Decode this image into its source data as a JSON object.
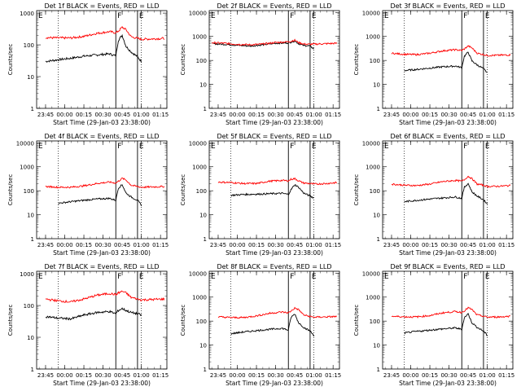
{
  "figure": {
    "shared_xlabel": "Start Time (29-Jan-03 23:38:00)",
    "ylabel": "Counts/sec",
    "x_tick_labels": [
      "23:45",
      "00:00",
      "00:15",
      "00:30",
      "00:45",
      "01:00",
      "01:15"
    ],
    "y_tick_labels_small": [
      "1",
      "10",
      "100",
      "1000"
    ],
    "y_tick_labels_large": [
      "1",
      "10",
      "100",
      "1000",
      "10000"
    ],
    "colors": {
      "events": "#000000",
      "lld": "#ff0000"
    },
    "markers": {
      "vertical_labels": [
        "E",
        "F",
        "E"
      ]
    }
  },
  "chart_data": [
    {
      "type": "line",
      "title": "Det 1f BLACK = Events, RED = LLD",
      "xlabel": "Start Time (29-Jan-03 23:38:00)",
      "ylabel": "Counts/sec",
      "ylog": true,
      "ylim": [
        1,
        1200
      ],
      "xlim": [
        "23:38",
        "01:20"
      ],
      "series": [
        {
          "name": "Events",
          "color": "#000000",
          "x": [
            "23:45",
            "23:55",
            "00:05",
            "00:15",
            "00:25",
            "00:35",
            "00:40",
            "00:42",
            "00:45",
            "00:48",
            "00:52",
            "00:57",
            "01:00"
          ],
          "values": [
            30,
            34,
            38,
            44,
            48,
            52,
            45,
            140,
            200,
            90,
            60,
            42,
            30
          ]
        },
        {
          "name": "LLD",
          "color": "#ff0000",
          "x": [
            "23:45",
            "23:55",
            "00:05",
            "00:15",
            "00:25",
            "00:35",
            "00:40",
            "00:42",
            "00:45",
            "00:48",
            "00:52",
            "00:57",
            "01:00",
            "01:10",
            "01:18"
          ],
          "values": [
            170,
            165,
            165,
            185,
            230,
            260,
            240,
            270,
            360,
            300,
            180,
            160,
            150,
            155,
            160
          ]
        }
      ],
      "vertical_lines": [
        {
          "x": "23:55",
          "style": "dotted"
        },
        {
          "x": "00:40",
          "style": "solid"
        },
        {
          "x": "00:57",
          "style": "solid"
        },
        {
          "x": "01:00",
          "style": "dotted"
        }
      ]
    },
    {
      "type": "line",
      "title": "Det 2f BLACK = Events, RED = LLD",
      "xlabel": "Start Time (29-Jan-03 23:38:00)",
      "ylabel": "Counts/sec",
      "ylog": true,
      "ylim": [
        1,
        12000
      ],
      "xlim": [
        "23:38",
        "01:20"
      ],
      "series": [
        {
          "name": "Events",
          "color": "#000000",
          "x": [
            "23:40",
            "23:50",
            "00:00",
            "00:10",
            "00:20",
            "00:30",
            "00:40",
            "00:45",
            "00:48",
            "00:52",
            "00:57",
            "01:00"
          ],
          "values": [
            500,
            470,
            430,
            400,
            450,
            520,
            540,
            650,
            500,
            420,
            400,
            300
          ]
        },
        {
          "name": "LLD",
          "color": "#ff0000",
          "x": [
            "23:40",
            "23:50",
            "00:00",
            "00:10",
            "00:20",
            "00:30",
            "00:40",
            "00:45",
            "00:48",
            "00:52",
            "00:57",
            "01:00",
            "01:10",
            "01:18"
          ],
          "values": [
            550,
            520,
            470,
            450,
            480,
            560,
            600,
            700,
            560,
            480,
            470,
            480,
            500,
            520
          ]
        }
      ],
      "vertical_lines": [
        {
          "x": "23:55",
          "style": "dotted"
        },
        {
          "x": "00:40",
          "style": "solid"
        },
        {
          "x": "00:57",
          "style": "solid"
        },
        {
          "x": "01:00",
          "style": "dotted"
        }
      ]
    },
    {
      "type": "line",
      "title": "Det 3f BLACK = Events, RED = LLD",
      "xlabel": "Start Time (29-Jan-03 23:38:00)",
      "ylabel": "Counts/sec",
      "ylog": true,
      "ylim": [
        1,
        12000
      ],
      "xlim": [
        "23:38",
        "01:20"
      ],
      "series": [
        {
          "name": "Events",
          "color": "#000000",
          "x": [
            "23:55",
            "00:05",
            "00:15",
            "00:25",
            "00:35",
            "00:40",
            "00:42",
            "00:45",
            "00:48",
            "00:52",
            "00:57",
            "01:00"
          ],
          "values": [
            38,
            42,
            48,
            54,
            58,
            50,
            150,
            220,
            95,
            65,
            45,
            30
          ]
        },
        {
          "name": "LLD",
          "color": "#ff0000",
          "x": [
            "23:45",
            "23:55",
            "00:05",
            "00:15",
            "00:25",
            "00:35",
            "00:40",
            "00:42",
            "00:45",
            "00:48",
            "00:52",
            "00:57",
            "01:00",
            "01:10",
            "01:18"
          ],
          "values": [
            200,
            180,
            175,
            200,
            250,
            280,
            260,
            300,
            400,
            330,
            200,
            175,
            160,
            165,
            170
          ]
        }
      ],
      "vertical_lines": [
        {
          "x": "23:55",
          "style": "dotted"
        },
        {
          "x": "00:40",
          "style": "solid"
        },
        {
          "x": "00:57",
          "style": "solid"
        },
        {
          "x": "01:00",
          "style": "dotted"
        }
      ]
    },
    {
      "type": "line",
      "title": "Det 4f BLACK = Events, RED = LLD",
      "xlabel": "Start Time (29-Jan-03 23:38:00)",
      "ylabel": "Counts/sec",
      "ylog": true,
      "ylim": [
        1,
        12000
      ],
      "xlim": [
        "23:38",
        "01:20"
      ],
      "series": [
        {
          "name": "Events",
          "color": "#000000",
          "x": [
            "23:55",
            "00:05",
            "00:15",
            "00:25",
            "00:35",
            "00:40",
            "00:42",
            "00:45",
            "00:48",
            "00:52",
            "00:57",
            "01:00"
          ],
          "values": [
            30,
            35,
            40,
            45,
            48,
            40,
            130,
            180,
            80,
            55,
            40,
            25
          ]
        },
        {
          "name": "LLD",
          "color": "#ff0000",
          "x": [
            "23:45",
            "23:55",
            "00:05",
            "00:15",
            "00:25",
            "00:35",
            "00:40",
            "00:42",
            "00:45",
            "00:48",
            "00:52",
            "00:57",
            "01:00",
            "01:10",
            "01:18"
          ],
          "values": [
            150,
            140,
            140,
            160,
            200,
            230,
            210,
            250,
            330,
            280,
            170,
            150,
            140,
            145,
            150
          ]
        }
      ],
      "vertical_lines": [
        {
          "x": "23:55",
          "style": "dotted"
        },
        {
          "x": "00:40",
          "style": "solid"
        },
        {
          "x": "00:57",
          "style": "solid"
        },
        {
          "x": "01:00",
          "style": "dotted"
        }
      ]
    },
    {
      "type": "line",
      "title": "Det 5f BLACK = Events, RED = LLD",
      "xlabel": "Start Time (29-Jan-03 23:38:00)",
      "ylabel": "Counts/sec",
      "ylog": true,
      "ylim": [
        1,
        12000
      ],
      "xlim": [
        "23:38",
        "01:20"
      ],
      "series": [
        {
          "name": "Events",
          "color": "#000000",
          "x": [
            "23:55",
            "00:05",
            "00:15",
            "00:25",
            "00:35",
            "00:40",
            "00:42",
            "00:45",
            "00:48",
            "00:52",
            "00:57",
            "01:00"
          ],
          "values": [
            65,
            70,
            72,
            75,
            78,
            70,
            110,
            180,
            140,
            80,
            60,
            50
          ]
        },
        {
          "name": "LLD",
          "color": "#ff0000",
          "x": [
            "23:45",
            "23:55",
            "00:05",
            "00:15",
            "00:25",
            "00:35",
            "00:40",
            "00:42",
            "00:45",
            "00:48",
            "00:52",
            "00:57",
            "01:00",
            "01:10",
            "01:18"
          ],
          "values": [
            230,
            220,
            200,
            200,
            250,
            270,
            260,
            300,
            320,
            260,
            210,
            200,
            190,
            200,
            220
          ]
        }
      ],
      "vertical_lines": [
        {
          "x": "23:55",
          "style": "dotted"
        },
        {
          "x": "00:40",
          "style": "solid"
        },
        {
          "x": "00:57",
          "style": "solid"
        },
        {
          "x": "01:00",
          "style": "dotted"
        }
      ]
    },
    {
      "type": "line",
      "title": "Det 6f BLACK = Events, RED = LLD",
      "xlabel": "Start Time (29-Jan-03 23:38:00)",
      "ylabel": "Counts/sec",
      "ylog": true,
      "ylim": [
        1,
        12000
      ],
      "xlim": [
        "23:38",
        "01:20"
      ],
      "series": [
        {
          "name": "Events",
          "color": "#000000",
          "x": [
            "23:55",
            "00:05",
            "00:15",
            "00:25",
            "00:35",
            "00:40",
            "00:42",
            "00:45",
            "00:48",
            "00:52",
            "00:57",
            "01:00"
          ],
          "values": [
            35,
            40,
            45,
            50,
            55,
            48,
            140,
            200,
            90,
            60,
            42,
            28
          ]
        },
        {
          "name": "LLD",
          "color": "#ff0000",
          "x": [
            "23:45",
            "23:55",
            "00:05",
            "00:15",
            "00:25",
            "00:35",
            "00:40",
            "00:42",
            "00:45",
            "00:48",
            "00:52",
            "00:57",
            "01:00",
            "01:10",
            "01:18"
          ],
          "values": [
            190,
            170,
            165,
            190,
            240,
            270,
            250,
            290,
            400,
            320,
            190,
            170,
            150,
            155,
            165
          ]
        }
      ],
      "vertical_lines": [
        {
          "x": "23:55",
          "style": "dotted"
        },
        {
          "x": "00:40",
          "style": "solid"
        },
        {
          "x": "00:57",
          "style": "solid"
        },
        {
          "x": "01:00",
          "style": "dotted"
        }
      ]
    },
    {
      "type": "line",
      "title": "Det 7f BLACK = Events, RED = LLD",
      "xlabel": "Start Time (29-Jan-03 23:38:00)",
      "ylabel": "Counts/sec",
      "ylog": true,
      "ylim": [
        1,
        1200
      ],
      "xlim": [
        "23:38",
        "01:20"
      ],
      "series": [
        {
          "name": "Events",
          "color": "#000000",
          "x": [
            "23:45",
            "23:55",
            "00:05",
            "00:15",
            "00:25",
            "00:35",
            "00:40",
            "00:42",
            "00:45",
            "00:48",
            "00:52",
            "00:57",
            "01:00"
          ],
          "values": [
            45,
            40,
            38,
            50,
            60,
            65,
            55,
            70,
            80,
            70,
            60,
            55,
            50
          ]
        },
        {
          "name": "LLD",
          "color": "#ff0000",
          "x": [
            "23:45",
            "23:55",
            "00:05",
            "00:15",
            "00:25",
            "00:35",
            "00:40",
            "00:42",
            "00:45",
            "00:48",
            "00:52",
            "00:57",
            "01:00",
            "01:10",
            "01:18"
          ],
          "values": [
            160,
            140,
            130,
            160,
            210,
            240,
            220,
            250,
            280,
            250,
            180,
            160,
            150,
            155,
            160
          ]
        }
      ],
      "vertical_lines": [
        {
          "x": "23:55",
          "style": "dotted"
        },
        {
          "x": "00:40",
          "style": "solid"
        },
        {
          "x": "00:57",
          "style": "solid"
        },
        {
          "x": "01:00",
          "style": "dotted"
        }
      ]
    },
    {
      "type": "line",
      "title": "Det 8f BLACK = Events, RED = LLD",
      "xlabel": "Start Time (29-Jan-03 23:38:00)",
      "ylabel": "Counts/sec",
      "ylog": true,
      "ylim": [
        1,
        12000
      ],
      "xlim": [
        "23:38",
        "01:20"
      ],
      "series": [
        {
          "name": "Events",
          "color": "#000000",
          "x": [
            "23:55",
            "00:05",
            "00:15",
            "00:25",
            "00:35",
            "00:40",
            "00:42",
            "00:45",
            "00:48",
            "00:52",
            "00:57",
            "01:00"
          ],
          "values": [
            30,
            35,
            40,
            45,
            50,
            42,
            140,
            200,
            85,
            55,
            38,
            25
          ]
        },
        {
          "name": "LLD",
          "color": "#ff0000",
          "x": [
            "23:45",
            "23:55",
            "00:05",
            "00:15",
            "00:25",
            "00:35",
            "00:40",
            "00:42",
            "00:45",
            "00:48",
            "00:52",
            "00:57",
            "01:00",
            "01:10",
            "01:18"
          ],
          "values": [
            150,
            140,
            140,
            165,
            210,
            240,
            220,
            260,
            350,
            300,
            180,
            155,
            145,
            150,
            155
          ]
        }
      ],
      "vertical_lines": [
        {
          "x": "23:55",
          "style": "dotted"
        },
        {
          "x": "00:40",
          "style": "solid"
        },
        {
          "x": "00:57",
          "style": "solid"
        },
        {
          "x": "01:00",
          "style": "dotted"
        }
      ]
    },
    {
      "type": "line",
      "title": "Det 9f BLACK = Events, RED = LLD",
      "xlabel": "Start Time (29-Jan-03 23:38:00)",
      "ylabel": "Counts/sec",
      "ylog": true,
      "ylim": [
        1,
        12000
      ],
      "xlim": [
        "23:38",
        "01:20"
      ],
      "series": [
        {
          "name": "Events",
          "color": "#000000",
          "x": [
            "23:55",
            "00:05",
            "00:15",
            "00:25",
            "00:35",
            "00:40",
            "00:42",
            "00:45",
            "00:48",
            "00:52",
            "00:57",
            "01:00"
          ],
          "values": [
            32,
            37,
            42,
            47,
            52,
            45,
            140,
            200,
            85,
            55,
            38,
            25
          ]
        },
        {
          "name": "LLD",
          "color": "#ff0000",
          "x": [
            "23:45",
            "23:55",
            "00:05",
            "00:15",
            "00:25",
            "00:35",
            "00:40",
            "00:42",
            "00:45",
            "00:48",
            "00:52",
            "00:57",
            "01:00",
            "01:10",
            "01:18"
          ],
          "values": [
            160,
            150,
            150,
            170,
            220,
            250,
            230,
            270,
            360,
            300,
            180,
            160,
            145,
            150,
            160
          ]
        }
      ],
      "vertical_lines": [
        {
          "x": "23:55",
          "style": "dotted"
        },
        {
          "x": "00:40",
          "style": "solid"
        },
        {
          "x": "00:57",
          "style": "solid"
        },
        {
          "x": "01:00",
          "style": "dotted"
        }
      ]
    }
  ]
}
